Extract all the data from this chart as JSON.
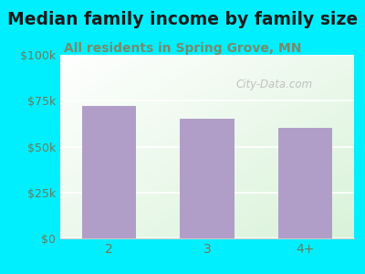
{
  "title": "Median family income by family size",
  "subtitle": "All residents in Spring Grove, MN",
  "categories": [
    "2",
    "3",
    "4+"
  ],
  "values": [
    72000,
    65000,
    60000
  ],
  "bar_color": "#b09ec8",
  "background_color": "#00efff",
  "title_color": "#1a1a1a",
  "subtitle_color": "#7a8a6a",
  "tick_label_color": "#6a7a5a",
  "ylim": [
    0,
    100000
  ],
  "yticks": [
    0,
    25000,
    50000,
    75000,
    100000
  ],
  "ytick_labels": [
    "$0",
    "$25k",
    "$50k",
    "$75k",
    "$100k"
  ],
  "watermark": "City-Data.com",
  "title_fontsize": 13.5,
  "subtitle_fontsize": 10,
  "tick_fontsize": 9
}
